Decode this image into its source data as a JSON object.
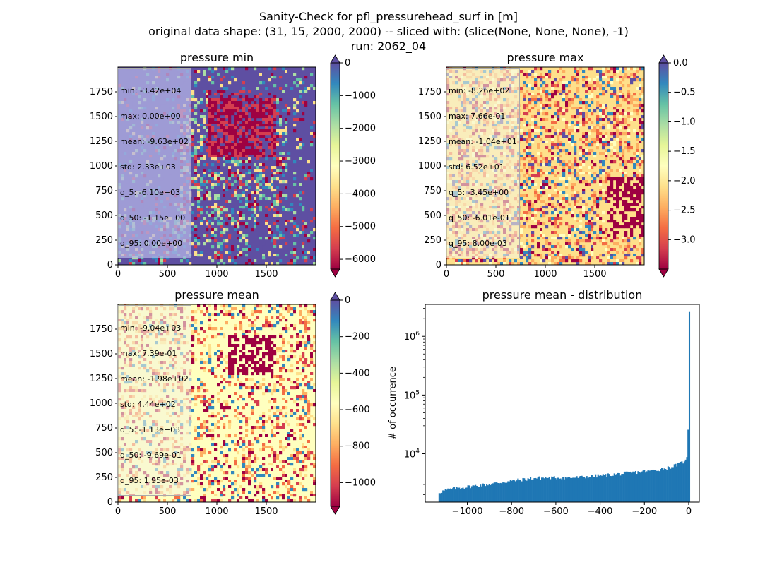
{
  "figure": {
    "title_line1": "Sanity-Check for pfl_pressurehead_surf in [m]",
    "title_line2": "original data shape: (31, 15, 2000, 2000) -- sliced with: (slice(None, None, None), -1)",
    "title_line3": "run: 2062_04"
  },
  "panels": {
    "min": {
      "title": "pressure min",
      "stats": [
        "min: -3.42e+04",
        "max: 0.00e+00",
        "mean: -9.63e+02",
        "std: 2.33e+03",
        "q_5: -6.10e+03",
        "q_50: -1.15e+00",
        "q_95: 0.00e+00"
      ],
      "xticks": [
        "0",
        "500",
        "1000",
        "1500"
      ],
      "yticks": [
        "0",
        "250",
        "500",
        "750",
        "1000",
        "1250",
        "1500",
        "1750"
      ],
      "colorbar": {
        "range": [
          -6300,
          0
        ],
        "ticks": [
          0,
          -1000,
          -2000,
          -3000,
          -4000,
          -5000,
          -6000
        ],
        "ticklabels": [
          "0",
          "−1000",
          "−2000",
          "−3000",
          "−4000",
          "−5000",
          "−6000"
        ],
        "extend": "both"
      }
    },
    "max": {
      "title": "pressure max",
      "stats": [
        "min: -8.26e+02",
        "max: 7.66e-01",
        "mean: -1.04e+01",
        "std: 6.52e+01",
        "q_5: -3.45e+00",
        "q_50: -6.01e-01",
        "q_95: 8.00e-03"
      ],
      "xticks": [
        "0",
        "500",
        "1000",
        "1500"
      ],
      "yticks": [
        "0",
        "250",
        "500",
        "750",
        "1000",
        "1250",
        "1500",
        "1750"
      ],
      "colorbar": {
        "range": [
          -3.5,
          0
        ],
        "ticks": [
          0,
          -0.5,
          -1,
          -1.5,
          -2,
          -2.5,
          -3
        ],
        "ticklabels": [
          "0.0",
          "−0.5",
          "−1.0",
          "−1.5",
          "−2.0",
          "−2.5",
          "−3.0"
        ],
        "extend": "both"
      }
    },
    "mean": {
      "title": "pressure mean",
      "stats": [
        "min: -9.04e+03",
        "max: 7.39e-01",
        "mean: -1.98e+02",
        "std: 4.44e+02",
        "q_5: -1.13e+03",
        "q_50: -9.69e-01",
        "q_95: 1.95e-03"
      ],
      "xticks": [
        "0",
        "500",
        "1000",
        "1500"
      ],
      "yticks": [
        "0",
        "250",
        "500",
        "750",
        "1000",
        "1250",
        "1500",
        "1750"
      ],
      "colorbar": {
        "range": [
          -1130,
          0
        ],
        "ticks": [
          0,
          -200,
          -400,
          -600,
          -800,
          -1000
        ],
        "ticklabels": [
          "0",
          "−200",
          "−400",
          "−600",
          "−800",
          "−1000"
        ],
        "extend": "both"
      }
    }
  },
  "chart_data": {
    "type": "bar",
    "title": "pressure mean - distribution",
    "xlabel": "",
    "ylabel": "# of occurrence",
    "xlim": [
      -1190,
      48
    ],
    "ylim": [
      1500,
      3500000
    ],
    "yscale": "log",
    "xticks": [
      -1000,
      -800,
      -600,
      -400,
      -200,
      0
    ],
    "xticklabels": [
      "−1000",
      "−800",
      "−600",
      "−400",
      "−200",
      "0"
    ],
    "yticklabels": [
      "10^4",
      "10^5",
      "10^6"
    ],
    "bin_width": 5.65,
    "x": [
      -1130,
      -1100,
      -1050,
      -1000,
      -950,
      -900,
      -850,
      -800,
      -750,
      -700,
      -650,
      -600,
      -550,
      -500,
      -450,
      -400,
      -350,
      -300,
      -250,
      -200,
      -150,
      -100,
      -50,
      -20,
      -10,
      -5,
      0
    ],
    "values": [
      2200,
      2400,
      2600,
      2750,
      2900,
      3050,
      3250,
      3450,
      3650,
      3850,
      3900,
      3900,
      3900,
      3950,
      4100,
      4250,
      4400,
      4600,
      4800,
      5000,
      5300,
      5700,
      6600,
      7500,
      9000,
      30000,
      2600000
    ],
    "color": "#1f77b4"
  },
  "colormap": "Spectral"
}
